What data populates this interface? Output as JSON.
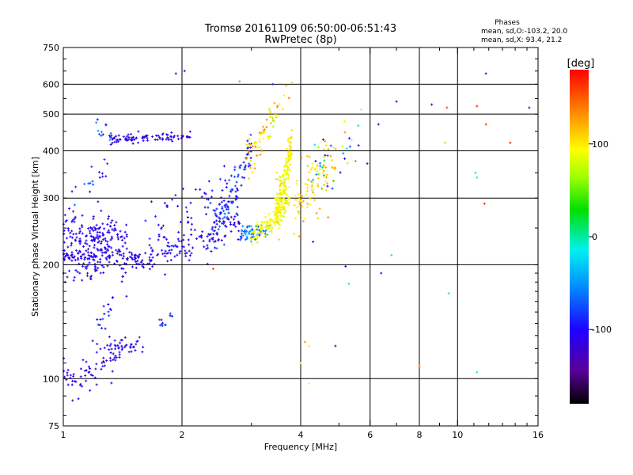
{
  "chart_data": {
    "type": "scatter",
    "title": "Tromsø 20161109 06:50:00-06:51:43",
    "subtitle": "RwPretec (8p)",
    "xlabel": "Frequency [MHz]",
    "ylabel": "Stationary phase Virtual Height [km]",
    "x_scale": "log",
    "y_scale": "log",
    "xlim": [
      1,
      16
    ],
    "ylim": [
      75,
      750
    ],
    "x_ticks": [
      1,
      2,
      4,
      6,
      8,
      10,
      16
    ],
    "x_tick_labels": [
      "1",
      "2",
      "4",
      "6",
      "8",
      "10",
      "16"
    ],
    "y_ticks": [
      75,
      100,
      200,
      300,
      400,
      500,
      600,
      750
    ],
    "y_tick_labels": [
      "75",
      "100",
      "200",
      "300",
      "400",
      "500",
      "600",
      "750"
    ],
    "grid": true,
    "phases_info": {
      "heading": "Phases",
      "o_line": "mean, sd,O:-103.2, 20.0",
      "x_line": "mean, sd,X:  93.4, 21.2"
    },
    "colorbar": {
      "label": "[deg]",
      "range": [
        -180,
        180
      ],
      "ticks": [
        100,
        0,
        -100
      ],
      "tick_labels": [
        "100",
        "0",
        "-100"
      ]
    },
    "series": [
      {
        "clusters": [
          {
            "kind": "band",
            "f0": 1.0,
            "f1": 1.45,
            "h0": 235,
            "h1": 225,
            "sd": 22,
            "n": 190,
            "phase": [
              -120,
              -95
            ],
            "lowFreqSpread": 1
          },
          {
            "kind": "band",
            "f0": 1.0,
            "f1": 1.6,
            "h0": 212,
            "h1": 206,
            "sd": 6,
            "n": 110,
            "phase": [
              -125,
              -95
            ]
          },
          {
            "kind": "band",
            "f0": 1.6,
            "f1": 2.8,
            "h0": 210,
            "h1": 260,
            "sd": 10,
            "n": 110,
            "phase": [
              -120,
              -90
            ]
          },
          {
            "kind": "band",
            "f0": 1.55,
            "f1": 2.6,
            "h0": 240,
            "h1": 330,
            "sd": 30,
            "n": 60,
            "phase": [
              -120,
              -80
            ]
          },
          {
            "kind": "band",
            "f0": 2.4,
            "f1": 3.0,
            "h0": 255,
            "h1": 410,
            "sd": 22,
            "n": 120,
            "phase": [
              -115,
              -60
            ]
          },
          {
            "kind": "band",
            "f0": 2.8,
            "f1": 3.35,
            "h0": 240,
            "h1": 250,
            "sd": 6,
            "n": 60,
            "phase": [
              -90,
              -30
            ]
          },
          {
            "kind": "band",
            "f0": 1.3,
            "f1": 2.1,
            "h0": 430,
            "h1": 440,
            "sd": 7,
            "n": 90,
            "phase": [
              -125,
              -95
            ]
          },
          {
            "kind": "band",
            "f0": 1.2,
            "f1": 1.35,
            "h0": 470,
            "h1": 430,
            "sd": 12,
            "n": 12,
            "phase": [
              -120,
              -40
            ]
          },
          {
            "kind": "band",
            "f0": 1.0,
            "f1": 1.45,
            "h0": 100,
            "h1": 125,
            "sd": 7,
            "n": 80,
            "phase": [
              -125,
              -95
            ]
          },
          {
            "kind": "band",
            "f0": 1.3,
            "f1": 1.6,
            "h0": 122,
            "h1": 124,
            "sd": 3,
            "n": 25,
            "phase": [
              -120,
              -90
            ]
          },
          {
            "kind": "band",
            "f0": 1.2,
            "f1": 1.35,
            "h0": 140,
            "h1": 155,
            "sd": 10,
            "n": 15,
            "phase": [
              -120,
              -70
            ]
          },
          {
            "kind": "band",
            "f0": 1.75,
            "f1": 1.9,
            "h0": 140,
            "h1": 145,
            "sd": 5,
            "n": 12,
            "phase": [
              -110,
              -60
            ]
          },
          {
            "kind": "band",
            "f0": 1.0,
            "f1": 1.25,
            "h0": 180,
            "h1": 200,
            "sd": 10,
            "n": 20,
            "phase": [
              -120,
              -90
            ]
          },
          {
            "kind": "band",
            "f0": 1.05,
            "f1": 1.3,
            "h0": 300,
            "h1": 380,
            "sd": 30,
            "n": 20,
            "phase": [
              -120,
              -60
            ]
          }
        ],
        "name": "O"
      },
      {
        "clusters": [
          {
            "kind": "band",
            "f0": 3.0,
            "f1": 3.75,
            "h0": 240,
            "h1": 300,
            "sd": 8,
            "n": 120,
            "phase": [
              80,
              105
            ]
          },
          {
            "kind": "band",
            "f0": 3.45,
            "f1": 3.8,
            "h0": 280,
            "h1": 420,
            "sd": 25,
            "n": 170,
            "phase": [
              80,
              110
            ]
          },
          {
            "kind": "band",
            "f0": 3.85,
            "f1": 4.9,
            "h0": 300,
            "h1": 380,
            "sd": 30,
            "n": 90,
            "phase": [
              80,
              130
            ]
          },
          {
            "kind": "band",
            "f0": 2.9,
            "f1": 3.5,
            "h0": 390,
            "h1": 490,
            "sd": 30,
            "n": 55,
            "phase": [
              60,
              140
            ]
          },
          {
            "kind": "band",
            "f0": 4.3,
            "f1": 5.7,
            "h0": 350,
            "h1": 460,
            "sd": 40,
            "n": 40,
            "phase": [
              -120,
              140
            ]
          },
          {
            "kind": "band",
            "f0": 3.2,
            "f1": 3.9,
            "h0": 520,
            "h1": 600,
            "sd": 20,
            "n": 8,
            "phase": [
              60,
              150
            ]
          }
        ],
        "name": "X"
      },
      {
        "points": [
          [
            1.93,
            640
          ],
          [
            2.03,
            650
          ],
          [
            2.8,
            610
          ],
          [
            3.4,
            600
          ],
          [
            3.8,
            605
          ],
          [
            5.9,
            370
          ],
          [
            6.3,
            470
          ],
          [
            7.0,
            540
          ],
          [
            8.6,
            530
          ],
          [
            9.4,
            520
          ],
          [
            11.2,
            525
          ],
          [
            11.8,
            640
          ],
          [
            11.8,
            470
          ],
          [
            13.6,
            420
          ],
          [
            15.2,
            520
          ],
          [
            11.1,
            350
          ],
          [
            9.3,
            420
          ],
          [
            11.7,
            290
          ],
          [
            2.4,
            195
          ],
          [
            5.2,
            198
          ],
          [
            5.3,
            178
          ],
          [
            6.4,
            190
          ],
          [
            6.8,
            212
          ],
          [
            4.3,
            230
          ],
          [
            4.2,
            122
          ],
          [
            4.0,
            110
          ],
          [
            4.1,
            125
          ],
          [
            4.9,
            122
          ],
          [
            4.2,
            97
          ],
          [
            9.5,
            168
          ],
          [
            11.2,
            104
          ],
          [
            8.0,
            108
          ],
          [
            11.2,
            340
          ]
        ],
        "phases": [
          -110,
          -100,
          40,
          -90,
          70,
          -120,
          -130,
          -120,
          -110,
          160,
          170,
          -100,
          160,
          170,
          -130,
          -20,
          60,
          170,
          160,
          -120,
          -10,
          -110,
          -20,
          -110,
          80,
          110,
          130,
          -110,
          90,
          -10,
          -10,
          150,
          -10
        ]
      }
    ]
  }
}
